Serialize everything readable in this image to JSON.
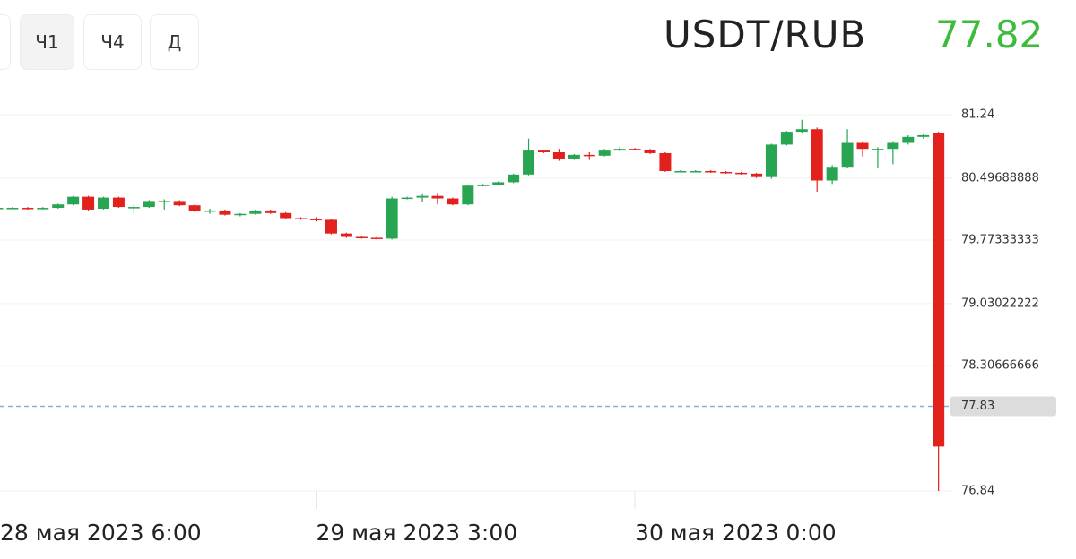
{
  "toolbar": {
    "buttons": [
      "Ч1",
      "Ч4",
      "Д"
    ]
  },
  "header": {
    "symbol": "USDT/RUB",
    "price": 77.82
  },
  "chart_data": {
    "type": "candlestick",
    "categories": [
      "28 мая 2023 6:00",
      null,
      null,
      null,
      null,
      null,
      null,
      null,
      null,
      null,
      null,
      null,
      null,
      null,
      null,
      null,
      null,
      null,
      null,
      null,
      null,
      "29 мая 2023 3:00",
      null,
      null,
      null,
      null,
      null,
      null,
      null,
      null,
      null,
      null,
      null,
      null,
      null,
      null,
      null,
      null,
      null,
      null,
      null,
      null,
      "30 мая 2023 0:00",
      null,
      null,
      null,
      null,
      null,
      null,
      null,
      null,
      null,
      null,
      null,
      null,
      null,
      null,
      null,
      null,
      null,
      null,
      null,
      null
    ],
    "open": [
      80.15,
      80.15,
      80.15,
      80.14,
      80.15,
      80.19,
      80.28,
      80.14,
      80.27,
      80.16,
      80.16,
      80.23,
      80.23,
      80.18,
      80.11,
      80.12,
      80.07,
      80.08,
      80.12,
      80.09,
      80.03,
      80.02,
      80.01,
      79.85,
      79.81,
      79.8,
      79.79,
      80.26,
      80.27,
      80.29,
      80.26,
      80.19,
      80.41,
      80.42,
      80.45,
      80.54,
      80.82,
      80.8,
      80.72,
      80.77,
      80.76,
      80.82,
      80.84,
      80.83,
      80.79,
      80.58,
      80.58,
      80.58,
      80.57,
      80.56,
      80.55,
      80.51,
      80.89,
      81.04,
      81.07,
      80.47,
      80.63,
      80.91,
      80.84,
      80.84,
      80.91,
      80.98,
      81.03
    ],
    "high": [
      80.16,
      80.16,
      80.16,
      80.16,
      80.2,
      80.29,
      80.29,
      80.28,
      80.28,
      80.19,
      80.24,
      80.25,
      80.24,
      80.19,
      80.14,
      80.13,
      80.09,
      80.13,
      80.13,
      80.1,
      80.04,
      80.04,
      80.02,
      79.86,
      79.82,
      79.81,
      80.28,
      80.28,
      80.31,
      80.32,
      80.27,
      80.42,
      80.43,
      80.46,
      80.55,
      80.96,
      80.83,
      80.84,
      80.78,
      80.8,
      80.84,
      80.86,
      80.85,
      80.84,
      80.8,
      80.59,
      80.59,
      80.59,
      80.58,
      80.57,
      80.56,
      80.9,
      81.05,
      81.18,
      81.09,
      80.65,
      81.07,
      80.93,
      80.86,
      80.93,
      81.0,
      81.01,
      81.04
    ],
    "low": [
      80.14,
      80.14,
      80.13,
      80.13,
      80.14,
      80.18,
      80.12,
      80.13,
      80.15,
      80.09,
      80.15,
      80.13,
      80.17,
      80.1,
      80.08,
      80.06,
      80.05,
      80.07,
      80.08,
      80.02,
      80.01,
      79.99,
      79.84,
      79.8,
      79.79,
      79.78,
      79.78,
      80.25,
      80.22,
      80.19,
      80.18,
      80.18,
      80.4,
      80.41,
      80.44,
      80.53,
      80.79,
      80.7,
      80.71,
      80.71,
      80.75,
      80.81,
      80.82,
      80.78,
      80.57,
      80.57,
      80.57,
      80.56,
      80.55,
      80.54,
      80.5,
      80.49,
      80.88,
      81.02,
      80.34,
      80.43,
      80.62,
      80.75,
      80.62,
      80.66,
      80.89,
      80.96,
      76.84
    ],
    "close": [
      80.15,
      80.15,
      80.14,
      80.15,
      80.19,
      80.28,
      80.13,
      80.27,
      80.16,
      80.16,
      80.23,
      80.23,
      80.18,
      80.11,
      80.12,
      80.07,
      80.08,
      80.12,
      80.09,
      80.03,
      80.02,
      80.01,
      79.85,
      79.81,
      79.8,
      79.79,
      80.26,
      80.27,
      80.29,
      80.26,
      80.19,
      80.41,
      80.42,
      80.45,
      80.54,
      80.82,
      80.8,
      80.72,
      80.77,
      80.76,
      80.82,
      80.84,
      80.83,
      80.79,
      80.58,
      80.58,
      80.58,
      80.57,
      80.56,
      80.55,
      80.51,
      80.89,
      81.04,
      81.07,
      80.47,
      80.63,
      80.91,
      80.84,
      80.84,
      80.91,
      80.98,
      81.0,
      77.36
    ],
    "up_color": "#27a552",
    "down_color": "#e3211c",
    "ylim": [
      76.84,
      81.24
    ],
    "yticks": [
      76.84,
      78.30666666,
      79.03022222,
      79.77333333,
      80.49688888,
      81.24
    ],
    "price_line": 77.83,
    "price_line_color": "#7fb2e0",
    "grid": true
  }
}
